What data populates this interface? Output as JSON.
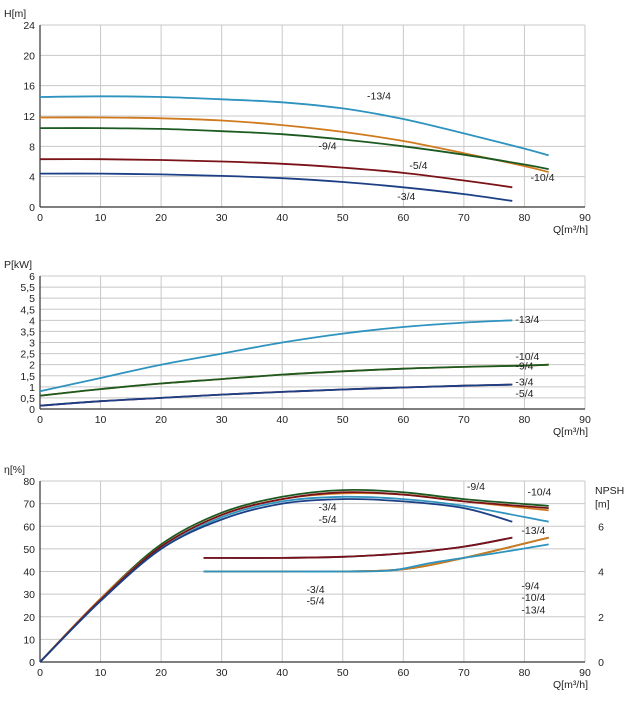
{
  "colors": {
    "13/4": "#2e93bf",
    "10/4": "#d07a1e",
    "9/4": "#1c5a22",
    "5/4": "#7a1218",
    "3/4": "#1d3f86"
  },
  "chart_data": [
    {
      "type": "line",
      "ylabel": "H[m]",
      "xlabel": "Q[m³/h]",
      "xlim": [
        0,
        90
      ],
      "ylim": [
        0,
        24
      ],
      "x_ticks": [
        "0",
        "10",
        "20",
        "30",
        "40",
        "50",
        "60",
        "70",
        "80",
        "90"
      ],
      "y_ticks": [
        "0",
        "4",
        "8",
        "12",
        "16",
        "20",
        "24"
      ],
      "grid": true,
      "series": [
        {
          "name": "-13/4",
          "key": "13/4",
          "x": [
            0,
            10,
            20,
            30,
            40,
            50,
            60,
            70,
            80,
            84
          ],
          "y": [
            14.5,
            14.6,
            14.5,
            14.2,
            13.8,
            13.0,
            11.6,
            9.7,
            7.7,
            6.8
          ]
        },
        {
          "name": "-10/4",
          "key": "10/4",
          "x": [
            0,
            10,
            20,
            30,
            40,
            50,
            60,
            70,
            80,
            84
          ],
          "y": [
            11.8,
            11.8,
            11.7,
            11.4,
            10.8,
            9.9,
            8.7,
            7.1,
            5.4,
            4.6
          ]
        },
        {
          "name": "-9/4",
          "key": "9/4",
          "x": [
            0,
            10,
            20,
            30,
            40,
            50,
            60,
            70,
            80,
            84
          ],
          "y": [
            10.4,
            10.4,
            10.3,
            10.0,
            9.6,
            8.9,
            8.0,
            6.9,
            5.6,
            5.0
          ]
        },
        {
          "name": "-5/4",
          "key": "5/4",
          "x": [
            0,
            10,
            20,
            30,
            40,
            50,
            60,
            70,
            78
          ],
          "y": [
            6.3,
            6.3,
            6.2,
            6.0,
            5.7,
            5.2,
            4.5,
            3.5,
            2.6
          ]
        },
        {
          "name": "-3/4",
          "key": "3/4",
          "x": [
            0,
            10,
            20,
            30,
            40,
            50,
            60,
            70,
            78
          ],
          "y": [
            4.4,
            4.4,
            4.3,
            4.1,
            3.8,
            3.3,
            2.6,
            1.7,
            0.8
          ]
        }
      ],
      "labels": [
        {
          "text": "-13/4",
          "key": "13/4",
          "x": 54,
          "y": 14.2
        },
        {
          "text": "-10/4",
          "key": "10/4",
          "x": 81,
          "y": 3.4
        },
        {
          "text": "-9/4",
          "key": "9/4",
          "x": 46,
          "y": 7.6
        },
        {
          "text": "-5/4",
          "key": "5/4",
          "x": 61,
          "y": 5.0
        },
        {
          "text": "-3/4",
          "key": "3/4",
          "x": 59,
          "y": 0.9
        }
      ]
    },
    {
      "type": "line",
      "ylabel": "P[kW]",
      "xlabel": "Q[m³/h]",
      "xlim": [
        0,
        90
      ],
      "ylim": [
        0,
        6
      ],
      "x_ticks": [
        "0",
        "10",
        "20",
        "30",
        "40",
        "50",
        "60",
        "70",
        "80",
        "90"
      ],
      "y_ticks": [
        "0",
        "0,5",
        "1",
        "1,5",
        "2",
        "2,5",
        "3",
        "3,5",
        "4",
        "4,5",
        "5",
        "5,5",
        "6"
      ],
      "grid": true,
      "series": [
        {
          "name": "-13/4",
          "key": "13/4",
          "x": [
            0,
            10,
            20,
            30,
            40,
            50,
            60,
            70,
            78
          ],
          "y": [
            0.8,
            1.4,
            2.0,
            2.5,
            3.0,
            3.4,
            3.7,
            3.9,
            4.0
          ]
        },
        {
          "name": "-10/4",
          "key": "10/4",
          "x": [
            0,
            10,
            20,
            30,
            40,
            50,
            60,
            70,
            80,
            84
          ],
          "y": [
            0.6,
            0.9,
            1.15,
            1.35,
            1.55,
            1.7,
            1.82,
            1.9,
            1.96,
            2.0
          ]
        },
        {
          "name": "-9/4",
          "key": "9/4",
          "x": [
            0,
            10,
            20,
            30,
            40,
            50,
            60,
            70,
            80,
            84
          ],
          "y": [
            0.6,
            0.9,
            1.15,
            1.35,
            1.55,
            1.7,
            1.82,
            1.9,
            1.96,
            2.0
          ]
        },
        {
          "name": "-5/4",
          "key": "5/4",
          "x": [
            0,
            10,
            20,
            30,
            40,
            50,
            60,
            70,
            78
          ],
          "y": [
            0.15,
            0.35,
            0.5,
            0.65,
            0.77,
            0.88,
            0.97,
            1.05,
            1.1
          ]
        },
        {
          "name": "-3/4",
          "key": "3/4",
          "x": [
            0,
            10,
            20,
            30,
            40,
            50,
            60,
            70,
            78
          ],
          "y": [
            0.15,
            0.35,
            0.5,
            0.65,
            0.77,
            0.88,
            0.97,
            1.05,
            1.1
          ]
        }
      ],
      "labels": [
        {
          "text": "-13/4",
          "key": "13/4",
          "x": 78.5,
          "y": 3.87
        },
        {
          "text": "-10/4",
          "key": "10/4",
          "x": 78.5,
          "y": 2.22
        },
        {
          "text": "-9/4",
          "key": "9/4",
          "x": 78.5,
          "y": 1.78
        },
        {
          "text": "-3/4",
          "key": "3/4",
          "x": 78.5,
          "y": 1.05
        },
        {
          "text": "-5/4",
          "key": "3/4",
          "x": 78.5,
          "y": 0.55
        }
      ]
    },
    {
      "type": "line",
      "ylabel": "η[%]",
      "xlabel": "Q[m³/h]",
      "y2label_top": "NPSH",
      "y2label_bottom": "[m]",
      "xlim": [
        0,
        90
      ],
      "ylim": [
        0,
        80
      ],
      "y2lim": [
        0,
        8
      ],
      "x_ticks": [
        "0",
        "10",
        "20",
        "30",
        "40",
        "50",
        "60",
        "70",
        "80",
        "90"
      ],
      "y_ticks": [
        "0",
        "10",
        "20",
        "30",
        "40",
        "50",
        "60",
        "70",
        "80"
      ],
      "y2_ticks": [
        "0",
        "2",
        "4",
        "6"
      ],
      "grid": true,
      "series": [
        {
          "name": "-9/4",
          "key": "9/4",
          "axis": "left",
          "x": [
            0,
            10,
            20,
            30,
            40,
            50,
            60,
            70,
            84
          ],
          "y": [
            0,
            28,
            52,
            66,
            73,
            76,
            75,
            72,
            69
          ]
        },
        {
          "name": "-10/4",
          "key": "10/4",
          "axis": "left",
          "x": [
            0,
            10,
            20,
            30,
            40,
            50,
            60,
            70,
            84
          ],
          "y": [
            0,
            28,
            51,
            65,
            72,
            74.5,
            74,
            71,
            67
          ]
        },
        {
          "name": "-13/4",
          "key": "13/4",
          "axis": "left",
          "x": [
            0,
            10,
            20,
            30,
            40,
            50,
            60,
            70,
            84
          ],
          "y": [
            0,
            27,
            50,
            64,
            71,
            73,
            72,
            69,
            62
          ]
        },
        {
          "name": "-5/4",
          "key": "5/4",
          "axis": "left",
          "x": [
            0,
            10,
            20,
            30,
            40,
            50,
            60,
            70,
            84
          ],
          "y": [
            0,
            27.5,
            51,
            65,
            72,
            75,
            74,
            71,
            68
          ]
        },
        {
          "name": "-3/4",
          "key": "3/4",
          "axis": "left",
          "x": [
            0,
            10,
            20,
            30,
            40,
            50,
            60,
            70,
            78
          ],
          "y": [
            0,
            27,
            50,
            63,
            70,
            72,
            71,
            68,
            62
          ]
        },
        {
          "name": "-3/4",
          "key": "3/4",
          "axis": "right",
          "x": [
            27,
            40,
            50,
            60,
            70,
            78
          ],
          "y": [
            4.6,
            4.6,
            4.65,
            4.8,
            5.1,
            5.5
          ]
        },
        {
          "name": "-5/4",
          "key": "5/4",
          "axis": "right",
          "x": [
            27,
            40,
            50,
            60,
            70,
            78
          ],
          "y": [
            4.6,
            4.6,
            4.65,
            4.8,
            5.1,
            5.5
          ]
        },
        {
          "name": "-9/4",
          "key": "9/4",
          "axis": "right",
          "x": [
            27,
            40,
            50,
            60,
            70,
            84
          ],
          "y": [
            4.0,
            4.0,
            4.0,
            4.1,
            4.6,
            5.5
          ]
        },
        {
          "name": "-10/4",
          "key": "10/4",
          "axis": "right",
          "x": [
            27,
            40,
            50,
            60,
            70,
            84
          ],
          "y": [
            4.0,
            4.0,
            4.0,
            4.1,
            4.6,
            5.5
          ]
        },
        {
          "name": "-13/4",
          "key": "13/4",
          "axis": "right",
          "x": [
            27,
            40,
            50,
            58,
            65,
            75,
            84
          ],
          "y": [
            4.0,
            4.0,
            4.0,
            4.05,
            4.4,
            4.8,
            5.2
          ]
        }
      ],
      "labels": [
        {
          "text": "-9/4",
          "key": "9/4",
          "x": 70.5,
          "y": 76
        },
        {
          "text": "-10/4",
          "key": "10/4",
          "x": 80.5,
          "y": 73.5
        },
        {
          "text": "-13/4",
          "key": "13/4",
          "x": 79.5,
          "y": 56.5
        },
        {
          "text": "-3/4",
          "key": "3/4",
          "x": 46,
          "y": 67
        },
        {
          "text": "-5/4",
          "key": "3/4",
          "x": 46,
          "y": 61.5
        },
        {
          "text": "-3/4",
          "key": "3/4",
          "x": 44,
          "y": 30.5
        },
        {
          "text": "-5/4",
          "key": "3/4",
          "x": 44,
          "y": 25.5
        },
        {
          "text": "-9/4",
          "key": "10/4",
          "x": 79.5,
          "y": 32
        },
        {
          "text": "-10/4",
          "key": "10/4",
          "x": 79.5,
          "y": 27
        },
        {
          "text": "-13/4",
          "key": "13/4",
          "x": 79.5,
          "y": 21.5
        }
      ]
    }
  ]
}
